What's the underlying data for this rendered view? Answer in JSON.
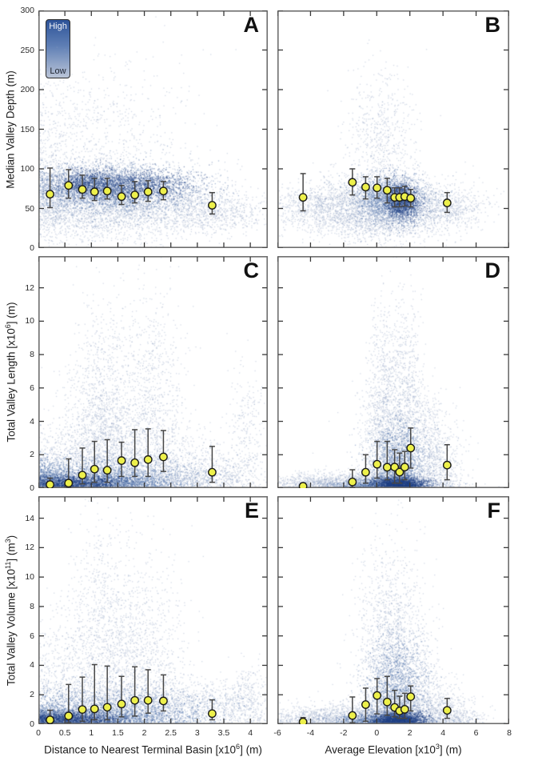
{
  "chart_data": {
    "type": "scatter",
    "description": "2x3 grid of density scatter plots with binned medians (yellow circles) and error bars",
    "legend": {
      "high": "High",
      "low": "Low",
      "gradient_top": "#2d5398",
      "gradient_bottom": "#bac4d7"
    },
    "marker": {
      "fill": "#edf04b",
      "stroke": "#1a1a1a"
    },
    "errorbar_color": "#474747",
    "axis_color": "#6e6e6e",
    "tick_color": "#3a3a3a",
    "density_colors": [
      "rgba(150,168,198,0.42)",
      "rgba(88,122,175,0.5)",
      "rgba(32,64,132,0.5)"
    ],
    "columns": [
      {
        "xlabel_segments": [
          {
            "t": "Distance to Nearest Terminal Basin [x10"
          },
          {
            "t": "6",
            "sup": true
          },
          {
            "t": "] (m)"
          }
        ],
        "xmin": 0,
        "xmax": 4.33,
        "xticks": [
          0,
          0.5,
          1,
          1.5,
          2,
          2.5,
          3,
          3.5,
          4
        ]
      },
      {
        "xlabel_segments": [
          {
            "t": "Average Elevation [x10"
          },
          {
            "t": "3",
            "sup": true
          },
          {
            "t": "] (m)"
          }
        ],
        "xmin": -6,
        "xmax": 8,
        "xticks": [
          -6,
          -4,
          -2,
          0,
          2,
          4,
          6,
          8
        ]
      }
    ],
    "rows": [
      {
        "ylabel_segments": [
          {
            "t": "Median Valley Depth (m)"
          }
        ],
        "ymin": 0,
        "ymax": 300,
        "yticks": [
          0,
          50,
          100,
          150,
          200,
          250,
          300
        ]
      },
      {
        "ylabel_segments": [
          {
            "t": "Total Valley Length [x10"
          },
          {
            "t": "6",
            "sup": true
          },
          {
            "t": "] (m)"
          }
        ],
        "ymin": 0,
        "ymax": 13.9,
        "yticks": [
          0,
          2,
          4,
          6,
          8,
          10,
          12
        ]
      },
      {
        "ylabel_segments": [
          {
            "t": "Total Valley Volume [x10"
          },
          {
            "t": "11",
            "sup": true
          },
          {
            "t": "] (m"
          },
          {
            "t": "3",
            "sup": true
          },
          {
            "t": ")"
          }
        ],
        "ymin": 0,
        "ymax": 15.5,
        "yticks": [
          0,
          2,
          4,
          6,
          8,
          10,
          12,
          14
        ]
      }
    ],
    "panels": [
      {
        "label": "A",
        "row": 0,
        "col": 0,
        "seed": 101,
        "medians": {
          "x": [
            0.22,
            0.57,
            0.83,
            1.06,
            1.3,
            1.57,
            1.82,
            2.07,
            2.36,
            3.28
          ],
          "y": [
            68,
            79,
            74,
            71,
            72,
            65,
            67,
            71,
            72,
            54
          ],
          "lo": [
            51,
            63,
            63,
            60,
            62,
            55,
            57,
            59,
            61,
            43
          ],
          "hi": [
            101,
            99,
            92,
            88,
            88,
            79,
            84,
            85,
            84,
            70
          ]
        },
        "clusters": [
          [
            1.2,
            65,
            0.95,
            25,
            2600,
            0
          ],
          [
            1.5,
            42,
            1.0,
            14,
            900,
            0
          ],
          [
            3.35,
            45,
            0.55,
            13,
            550,
            0
          ],
          [
            1.2,
            145,
            0.8,
            48,
            650,
            0
          ],
          [
            0.25,
            115,
            0.22,
            55,
            220,
            0
          ],
          [
            2.9,
            60,
            0.5,
            20,
            300,
            0
          ],
          [
            1.35,
            75,
            0.85,
            15,
            2200,
            1
          ],
          [
            1.65,
            80,
            0.6,
            10,
            1400,
            2
          ],
          [
            0.9,
            82,
            0.3,
            9,
            600,
            2
          ]
        ]
      },
      {
        "label": "B",
        "row": 0,
        "col": 1,
        "seed": 202,
        "medians": {
          "x": [
            -4.45,
            -1.47,
            -0.67,
            0.02,
            0.63,
            1.08,
            1.38,
            1.69,
            2.05,
            4.25
          ],
          "y": [
            64,
            83,
            77,
            76,
            73,
            64,
            64,
            65,
            63,
            57
          ],
          "lo": [
            47,
            67,
            62,
            63,
            57,
            52,
            52,
            53,
            52,
            45
          ],
          "hi": [
            94,
            100,
            90,
            90,
            88,
            76,
            76,
            78,
            74,
            70
          ]
        },
        "clusters": [
          [
            0.2,
            55,
            2.6,
            18,
            2400,
            0
          ],
          [
            -3.6,
            52,
            1.2,
            13,
            500,
            0
          ],
          [
            4.1,
            50,
            1.2,
            12,
            450,
            0
          ],
          [
            0.3,
            135,
            1.1,
            48,
            700,
            0
          ],
          [
            -0.2,
            30,
            2.0,
            12,
            600,
            0
          ],
          [
            0.8,
            62,
            1.1,
            15,
            1600,
            1
          ],
          [
            1.5,
            60,
            0.5,
            11,
            1300,
            2
          ]
        ]
      },
      {
        "label": "C",
        "row": 1,
        "col": 0,
        "seed": 303,
        "medians": {
          "x": [
            0.22,
            0.57,
            0.83,
            1.06,
            1.3,
            1.57,
            1.82,
            2.07,
            2.36,
            3.28
          ],
          "y": [
            0.21,
            0.3,
            0.78,
            1.14,
            1.07,
            1.65,
            1.52,
            1.71,
            1.87,
            0.95
          ],
          "lo": [
            0.05,
            0.05,
            0.25,
            0.35,
            0.35,
            0.7,
            0.7,
            0.7,
            1.0,
            0.35
          ],
          "hi": [
            0.6,
            1.75,
            2.4,
            2.8,
            2.9,
            2.75,
            3.5,
            3.55,
            3.45,
            2.5
          ]
        },
        "clusters": [
          [
            0.7,
            0.3,
            0.5,
            0.28,
            1600,
            2
          ],
          [
            1.6,
            0.35,
            0.6,
            0.3,
            800,
            1
          ],
          [
            1.2,
            0.8,
            0.95,
            0.6,
            1600,
            1
          ],
          [
            1.4,
            1.8,
            1.0,
            1.2,
            1500,
            0
          ],
          [
            2.2,
            0.5,
            1.0,
            0.45,
            900,
            0
          ],
          [
            1.25,
            5.5,
            0.28,
            3.0,
            750,
            0
          ],
          [
            2.2,
            5.5,
            0.3,
            3.0,
            700,
            0
          ],
          [
            0.95,
            3.8,
            0.3,
            2.0,
            400,
            0
          ],
          [
            1.75,
            3.2,
            0.45,
            1.8,
            450,
            0
          ],
          [
            3.2,
            0.9,
            0.55,
            0.7,
            450,
            0
          ],
          [
            3.95,
            3.5,
            0.18,
            2.0,
            230,
            0
          ],
          [
            0.2,
            0.6,
            0.2,
            0.5,
            400,
            1
          ]
        ]
      },
      {
        "label": "D",
        "row": 1,
        "col": 1,
        "seed": 404,
        "medians": {
          "x": [
            -4.45,
            -1.47,
            -0.67,
            0.02,
            0.63,
            1.08,
            1.38,
            1.69,
            2.05,
            4.25
          ],
          "y": [
            0.11,
            0.37,
            0.95,
            1.43,
            1.25,
            1.26,
            0.96,
            1.26,
            2.4,
            1.38
          ],
          "lo": [
            0.02,
            0.05,
            0.3,
            0.6,
            0.5,
            0.3,
            0.3,
            0.5,
            1.2,
            0.5
          ],
          "hi": [
            0.3,
            1.1,
            2.0,
            2.8,
            2.8,
            2.3,
            2.1,
            2.2,
            3.6,
            2.6
          ]
        },
        "clusters": [
          [
            1.3,
            0.25,
            0.8,
            0.22,
            1900,
            2
          ],
          [
            0.2,
            0.2,
            1.4,
            0.18,
            900,
            1
          ],
          [
            0,
            0.35,
            2.3,
            0.35,
            1300,
            0
          ],
          [
            -3.6,
            0.3,
            1.4,
            0.3,
            550,
            0
          ],
          [
            0.35,
            4.5,
            0.5,
            3.2,
            900,
            0
          ],
          [
            1.75,
            5,
            0.5,
            3.3,
            900,
            0
          ],
          [
            1.3,
            1.6,
            0.8,
            1.2,
            1300,
            1
          ],
          [
            1.1,
            2.6,
            1.3,
            1.9,
            800,
            0
          ],
          [
            3.6,
            1.4,
            0.9,
            1.2,
            450,
            0
          ],
          [
            3.3,
            3,
            0.5,
            1.6,
            250,
            0
          ]
        ]
      },
      {
        "label": "E",
        "row": 2,
        "col": 0,
        "seed": 505,
        "medians": {
          "x": [
            0.22,
            0.57,
            0.83,
            1.06,
            1.3,
            1.57,
            1.82,
            2.07,
            2.36,
            3.28
          ],
          "y": [
            0.29,
            0.56,
            1.0,
            1.04,
            1.15,
            1.37,
            1.62,
            1.62,
            1.58,
            0.72
          ],
          "lo": [
            0.05,
            0.1,
            0.2,
            0.3,
            0.3,
            0.5,
            0.55,
            0.75,
            0.9,
            0.3
          ],
          "hi": [
            0.95,
            2.7,
            3.2,
            4.05,
            3.95,
            3.25,
            3.9,
            3.7,
            3.35,
            1.65
          ]
        },
        "clusters": [
          [
            0.6,
            0.35,
            0.5,
            0.3,
            1600,
            2
          ],
          [
            1.5,
            0.45,
            0.75,
            0.4,
            950,
            1
          ],
          [
            1.3,
            1.1,
            1.0,
            0.85,
            1500,
            1
          ],
          [
            1.9,
            1.3,
            1.2,
            1.0,
            1300,
            0
          ],
          [
            1.15,
            6.5,
            0.3,
            3.8,
            800,
            0
          ],
          [
            2.0,
            5.5,
            0.38,
            3.2,
            750,
            0
          ],
          [
            1.6,
            3.5,
            0.5,
            2.2,
            500,
            0
          ],
          [
            0.45,
            3.5,
            0.3,
            2.2,
            420,
            0
          ],
          [
            3.3,
            1.2,
            0.6,
            0.9,
            480,
            0
          ],
          [
            3.95,
            1.8,
            0.25,
            1.4,
            220,
            0
          ],
          [
            0.2,
            0.5,
            0.2,
            0.45,
            420,
            1
          ]
        ]
      },
      {
        "label": "F",
        "row": 2,
        "col": 1,
        "seed": 606,
        "medians": {
          "x": [
            -4.45,
            -1.47,
            -0.67,
            0.02,
            0.63,
            1.08,
            1.38,
            1.69,
            2.05,
            4.25
          ],
          "y": [
            0.15,
            0.59,
            1.33,
            1.95,
            1.51,
            1.14,
            0.9,
            1.01,
            1.87,
            0.94
          ],
          "lo": [
            0.05,
            0.1,
            0.2,
            0.7,
            0.6,
            0.5,
            0.4,
            0.4,
            0.9,
            0.4
          ],
          "hi": [
            0.45,
            1.85,
            2.45,
            3.1,
            3.25,
            2.3,
            1.9,
            2.1,
            2.6,
            1.75
          ]
        },
        "clusters": [
          [
            1.3,
            0.3,
            0.8,
            0.28,
            1900,
            2
          ],
          [
            0.1,
            0.25,
            1.4,
            0.22,
            900,
            1
          ],
          [
            0,
            0.6,
            2.4,
            0.55,
            1300,
            0
          ],
          [
            -3.6,
            0.4,
            1.4,
            0.4,
            550,
            0
          ],
          [
            0.8,
            4.5,
            0.95,
            3.6,
            1900,
            0
          ],
          [
            1.2,
            2.4,
            0.85,
            1.7,
            1300,
            1
          ],
          [
            3.9,
            1.1,
            0.9,
            0.9,
            450,
            0
          ],
          [
            2.8,
            3,
            0.6,
            1.8,
            300,
            0
          ],
          [
            5,
            0.4,
            0.8,
            0.35,
            200,
            0
          ]
        ]
      }
    ]
  }
}
